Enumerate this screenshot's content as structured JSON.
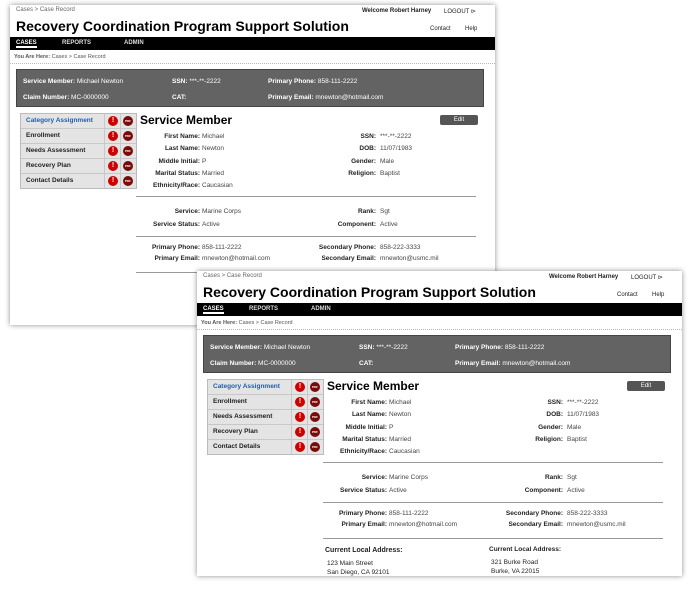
{
  "header": {
    "breadcrumb": "Cases  >  Case Record",
    "title": "Recovery Coordination Program Support Solution",
    "welcome": "Welcome Robert Harney",
    "logout": "LOGOUT ⊳",
    "contact": "Contact",
    "help": "Help"
  },
  "nav": {
    "tabs": [
      {
        "label": "CASES",
        "active": true
      },
      {
        "label": "REPORTS"
      },
      {
        "label": "ADMIN"
      }
    ]
  },
  "you_are_here": {
    "label": "You Are Here:",
    "path": "Cases  >  Case Record"
  },
  "summary": {
    "service_member_label": "Service Member:",
    "service_member": "Michael Newton",
    "ssn_label": "SSN:",
    "ssn": "***-**-2222",
    "phone_label": "Primary Phone:",
    "phone": "858-111-2222",
    "claim_label": "Claim Number:",
    "claim": "MC-0000000",
    "cat_label": "CAT:",
    "email_label": "Primary Email:",
    "email": "mnewton@hotmail.com"
  },
  "sidebar": {
    "items": [
      {
        "label": "Category Assignment"
      },
      {
        "label": "Enrollment"
      },
      {
        "label": "Needs Assessment"
      },
      {
        "label": "Recovery Plan"
      },
      {
        "label": "Contact Details"
      }
    ],
    "alert_glyph": "!",
    "pdf_glyph": "PDF"
  },
  "main": {
    "title": "Service Member",
    "edit": "Edit",
    "left": [
      {
        "label": "First Name:",
        "value": "Michael"
      },
      {
        "label": "Last Name:",
        "value": "Newton"
      },
      {
        "label": "Middle Initial:",
        "value": "P"
      },
      {
        "label": "Marital Status:",
        "value": "Married"
      },
      {
        "label": "Ethnicity/Race:",
        "value": "Caucasian"
      }
    ],
    "right": [
      {
        "label": "SSN:",
        "value": "***-**-2222"
      },
      {
        "label": "DOB:",
        "value": "11/07/1983"
      },
      {
        "label": "Gender:",
        "value": "Male"
      },
      {
        "label": "Religion:",
        "value": "Baptist"
      }
    ],
    "service": [
      {
        "label": "Service:",
        "value": "Marine Corps"
      },
      {
        "label": "Service Status:",
        "value": "Active"
      }
    ],
    "service_right": [
      {
        "label": "Rank:",
        "value": "Sgt"
      },
      {
        "label": "Component:",
        "value": "Active"
      }
    ],
    "contact": [
      {
        "label": "Primary Phone:",
        "value": "858-111-2222"
      },
      {
        "label": "Primary Email:",
        "value": "mnewton@hotmail.com"
      }
    ],
    "contact_right": [
      {
        "label": "Secondary Phone:",
        "value": "858-222-3333"
      },
      {
        "label": "Secondary Email:",
        "value": "mnewton@usmc.mil"
      }
    ],
    "address1": {
      "label": "Current Local Address:",
      "line1": "123 Main Street",
      "line2": "San Diego, CA 92101"
    },
    "address2": {
      "label": "Current Local Address:",
      "line1": "321 Burke Road",
      "line2": "Burke, VA 22015"
    }
  },
  "colors": {
    "nav_bg": "#000000",
    "summary_bg": "#636363",
    "alert": "#cc0000",
    "link": "#1a5fb4"
  }
}
